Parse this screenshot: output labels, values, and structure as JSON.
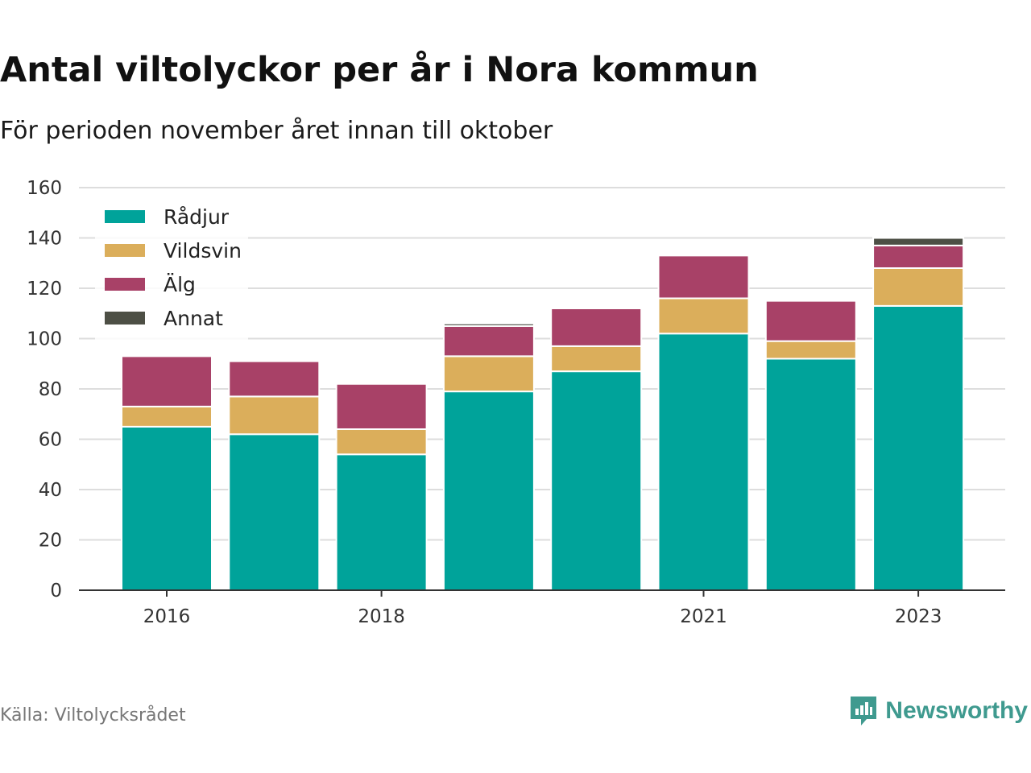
{
  "title": "Antal viltolyckor per år i Nora kommun",
  "subtitle": "För perioden november året innan till oktober",
  "source": "Källa: Viltolycksrådet",
  "brand": {
    "name": "Newsworthy",
    "icon": "newsworthy-logo-icon",
    "color": "#3f9a8f"
  },
  "chart_data": {
    "type": "bar",
    "stacked": true,
    "title": "Antal viltolyckor per år i Nora kommun",
    "subtitle": "För perioden november året innan till oktober",
    "x": [
      2016,
      2017,
      2018,
      2019,
      2020,
      2021,
      2022,
      2023
    ],
    "x_tick_labels": [
      "2016",
      "2018",
      "2021",
      "2023"
    ],
    "x_tick_values": [
      2016,
      2018,
      2021,
      2023
    ],
    "ylim": [
      0,
      160
    ],
    "y_ticks": [
      0,
      20,
      40,
      60,
      80,
      100,
      120,
      140,
      160
    ],
    "grid": true,
    "legend_position": "top-left",
    "series": [
      {
        "name": "Rådjur",
        "color": "#00a39a",
        "values": [
          65,
          62,
          54,
          79,
          87,
          102,
          92,
          113
        ]
      },
      {
        "name": "Vildsvin",
        "color": "#dbae5b",
        "values": [
          8,
          15,
          10,
          14,
          10,
          14,
          7,
          15
        ]
      },
      {
        "name": "Älg",
        "color": "#a84167",
        "values": [
          20,
          14,
          18,
          12,
          15,
          17,
          16,
          9
        ]
      },
      {
        "name": "Annat",
        "color": "#4d4f45",
        "values": [
          0,
          0,
          0,
          1,
          0,
          0,
          0,
          3
        ]
      }
    ]
  }
}
